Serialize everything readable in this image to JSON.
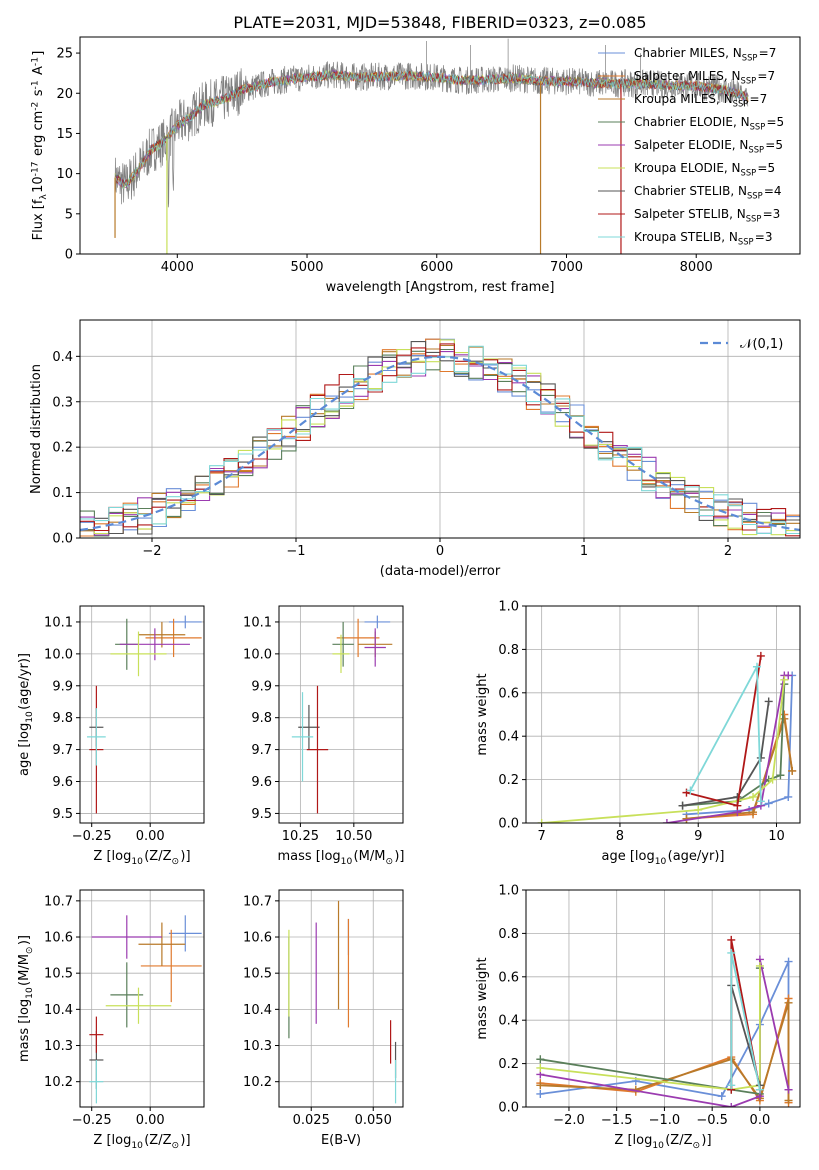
{
  "figure": {
    "title": "PLATE=2031, MJD=53848, FIBERID=0323, z=0.085"
  },
  "models": [
    {
      "name": "Chabrier MILES, N$_{SSP}$=7",
      "color": "#6a8fd8"
    },
    {
      "name": "Salpeter MILES, N$_{SSP}$=7",
      "color": "#e07a2e"
    },
    {
      "name": "Kroupa MILES, N$_{SSP}$=7",
      "color": "#b87a2a"
    },
    {
      "name": "Chabrier ELODIE, N$_{SSP}$=5",
      "color": "#5a7f5a"
    },
    {
      "name": "Salpeter ELODIE, N$_{SSP}$=5",
      "color": "#9b3bb0"
    },
    {
      "name": "Kroupa ELODIE, N$_{SSP}$=5",
      "color": "#c8e05a"
    },
    {
      "name": "Chabrier STELIB, N$_{SSP}$=4",
      "color": "#555555"
    },
    {
      "name": "Salpeter STELIB, N$_{SSP}$=3",
      "color": "#b01818"
    },
    {
      "name": "Kroupa STELIB, N$_{SSP}$=3",
      "color": "#7fd8d8"
    }
  ],
  "chart_data": [
    {
      "id": "spectrum",
      "type": "line",
      "xlabel": "wavelength [Angstrom, rest frame]",
      "ylabel": "Flux [f$_\\lambda$10$^{-17}$ erg cm$^{-2}$ s$^{-1}$ A$^{-1}$]",
      "xlim": [
        3250,
        8800
      ],
      "ylim": [
        0,
        27
      ],
      "xticks": [
        "4000",
        "5000",
        "6000",
        "7000",
        "8000"
      ],
      "yticks": [
        "0",
        "5",
        "10",
        "15",
        "20",
        "25"
      ],
      "legend_position": "right",
      "continuum": {
        "x": [
          3520,
          3600,
          3700,
          3800,
          3900,
          4000,
          4100,
          4200,
          4300,
          4400,
          4500,
          4600,
          4700,
          4800,
          4900,
          5000,
          5200,
          5400,
          5600,
          5800,
          6000,
          6200,
          6400,
          6600,
          6800,
          7000,
          7200,
          7400,
          7600,
          7800,
          8000,
          8200,
          8400
        ],
        "y": [
          9.5,
          8.5,
          10.5,
          13.0,
          14.0,
          16.0,
          17.0,
          18.5,
          19.0,
          19.5,
          20.5,
          20.8,
          21.3,
          21.6,
          21.8,
          22.0,
          22.3,
          22.0,
          22.1,
          22.2,
          22.0,
          21.6,
          21.7,
          21.9,
          21.5,
          21.5,
          21.3,
          21.2,
          21.2,
          21.0,
          20.9,
          20.5,
          19.5
        ]
      },
      "gaps": [
        {
          "x": 3520,
          "y": 2.0,
          "color": "#b87a2a"
        },
        {
          "x": 3920,
          "y": 0.0,
          "color": "#c8e05a"
        },
        {
          "x": 6800,
          "y": 0.0,
          "color": "#b87a2a"
        },
        {
          "x": 7420,
          "y": 0.0,
          "color": "#b01818"
        }
      ]
    },
    {
      "id": "residuals",
      "type": "histogram",
      "xlabel": "(data-model)/error",
      "ylabel": "Normed distribution",
      "xlim": [
        -2.5,
        2.5
      ],
      "ylim": [
        0,
        0.48
      ],
      "xticks": [
        "−2",
        "−1",
        "0",
        "1",
        "2"
      ],
      "yticks": [
        "0.0",
        "0.1",
        "0.2",
        "0.3",
        "0.4"
      ],
      "reference_label": "$\\mathcal{N}(0,1)$",
      "legend_position": "top-right",
      "bin_width": 0.1,
      "bin_start": -2.5
    },
    {
      "id": "age-vs-Z",
      "type": "errorbar",
      "xlabel": "Z [log$_{10}$(Z/Z$_\\odot$)]",
      "ylabel": "age  [log$_{10}$(age/yr)]",
      "xlim": [
        -0.3,
        0.23
      ],
      "ylim": [
        9.47,
        10.15
      ],
      "xticks": [
        "−0.25",
        "0.00"
      ],
      "yticks": [
        "9.5",
        "9.6",
        "9.7",
        "9.8",
        "9.9",
        "10.0",
        "10.1"
      ],
      "points": [
        {
          "m": 0,
          "x": 0.15,
          "y": 10.1,
          "xe": 0.07,
          "ye": 0.02
        },
        {
          "m": 1,
          "x": 0.1,
          "y": 10.05,
          "xe": 0.12,
          "ye": 0.06
        },
        {
          "m": 2,
          "x": 0.05,
          "y": 10.06,
          "xe": 0.1,
          "ye": 0.04
        },
        {
          "m": 3,
          "x": -0.1,
          "y": 10.03,
          "xe": 0.05,
          "ye": 0.08
        },
        {
          "m": 4,
          "x": 0.02,
          "y": 10.03,
          "xe": 0.15,
          "ye": 0.05
        },
        {
          "m": 5,
          "x": -0.05,
          "y": 10.0,
          "xe": 0.12,
          "ye": 0.07
        },
        {
          "m": 6,
          "x": -0.23,
          "y": 9.77,
          "xe": 0.03,
          "ye": 0.06
        },
        {
          "m": 7,
          "x": -0.23,
          "y": 9.7,
          "xe": 0.03,
          "ye": 0.2
        },
        {
          "m": 8,
          "x": -0.23,
          "y": 9.74,
          "xe": 0.04,
          "ye": 0.09
        }
      ]
    },
    {
      "id": "age-vs-mass",
      "type": "errorbar",
      "xlabel": "mass [log$_{10}$(M/M$_\\odot$)]",
      "ylabel": "",
      "xlim": [
        10.15,
        10.73
      ],
      "ylim": [
        9.47,
        10.15
      ],
      "xticks": [
        "10.25",
        "10.50"
      ],
      "yticks": [
        "9.5",
        "9.6",
        "9.7",
        "9.8",
        "9.9",
        "10.0",
        "10.1"
      ],
      "points": [
        {
          "m": 0,
          "x": 10.61,
          "y": 10.1,
          "xe": 0.06,
          "ye": 0.02
        },
        {
          "m": 1,
          "x": 10.52,
          "y": 10.05,
          "xe": 0.1,
          "ye": 0.06
        },
        {
          "m": 2,
          "x": 10.6,
          "y": 10.03,
          "xe": 0.08,
          "ye": 0.04
        },
        {
          "m": 3,
          "x": 10.45,
          "y": 10.03,
          "xe": 0.05,
          "ye": 0.07
        },
        {
          "m": 4,
          "x": 10.6,
          "y": 10.02,
          "xe": 0.05,
          "ye": 0.06
        },
        {
          "m": 5,
          "x": 10.44,
          "y": 10.0,
          "xe": 0.04,
          "ye": 0.06
        },
        {
          "m": 6,
          "x": 10.29,
          "y": 9.77,
          "xe": 0.05,
          "ye": 0.07
        },
        {
          "m": 7,
          "x": 10.33,
          "y": 9.7,
          "xe": 0.05,
          "ye": 0.2
        },
        {
          "m": 8,
          "x": 10.26,
          "y": 9.74,
          "xe": 0.05,
          "ye": 0.14
        }
      ]
    },
    {
      "id": "weight-vs-age",
      "type": "line",
      "xlabel": "age  [log$_{10}$(age/yr)]",
      "ylabel": "mass weight",
      "xlim": [
        6.8,
        10.3
      ],
      "ylim": [
        0,
        1.0
      ],
      "xticks": [
        "7",
        "8",
        "9",
        "10"
      ],
      "yticks": [
        "0.0",
        "0.2",
        "0.4",
        "0.6",
        "0.8",
        "1.0"
      ],
      "series": [
        {
          "m": 0,
          "x": [
            8.85,
            9.65,
            9.9,
            10.15,
            10.2
          ],
          "y": [
            0.04,
            0.06,
            0.09,
            0.12,
            0.68
          ]
        },
        {
          "m": 1,
          "x": [
            8.85,
            9.7,
            10.1,
            10.2
          ],
          "y": [
            0.02,
            0.04,
            0.5,
            0.24
          ]
        },
        {
          "m": 2,
          "x": [
            8.85,
            9.7,
            10.1,
            10.2
          ],
          "y": [
            0.02,
            0.05,
            0.48,
            0.24
          ]
        },
        {
          "m": 3,
          "x": [
            8.8,
            9.5,
            9.9,
            10.05,
            10.1
          ],
          "y": [
            0.08,
            0.1,
            0.2,
            0.22,
            0.64
          ]
        },
        {
          "m": 4,
          "x": [
            8.6,
            9.5,
            9.8,
            10.1,
            10.15
          ],
          "y": [
            0.0,
            0.05,
            0.08,
            0.68,
            0.68
          ]
        },
        {
          "m": 5,
          "x": [
            7.0,
            9.0,
            9.7,
            9.95,
            10.1
          ],
          "y": [
            0.0,
            0.06,
            0.12,
            0.2,
            0.66
          ]
        },
        {
          "m": 6,
          "x": [
            8.8,
            9.5,
            9.8,
            9.9
          ],
          "y": [
            0.08,
            0.12,
            0.3,
            0.56
          ]
        },
        {
          "m": 7,
          "x": [
            8.85,
            9.5,
            9.8
          ],
          "y": [
            0.14,
            0.08,
            0.77
          ]
        },
        {
          "m": 8,
          "x": [
            8.9,
            9.75,
            9.8
          ],
          "y": [
            0.15,
            0.72,
            0.1
          ]
        }
      ]
    },
    {
      "id": "mass-vs-Z",
      "type": "errorbar",
      "xlabel": "Z [log$_{10}$(Z/Z$_\\odot$)]",
      "ylabel": "mass [log$_{10}$(M/M$_\\odot$)]",
      "xlim": [
        -0.3,
        0.23
      ],
      "ylim": [
        10.13,
        10.73
      ],
      "xticks": [
        "−0.25",
        "0.00"
      ],
      "yticks": [
        "10.2",
        "10.3",
        "10.4",
        "10.5",
        "10.6",
        "10.7"
      ],
      "points": [
        {
          "m": 0,
          "x": 0.15,
          "y": 10.61,
          "xe": 0.07,
          "ye": 0.05
        },
        {
          "m": 1,
          "x": 0.09,
          "y": 10.52,
          "xe": 0.13,
          "ye": 0.1
        },
        {
          "m": 2,
          "x": 0.05,
          "y": 10.58,
          "xe": 0.1,
          "ye": 0.06
        },
        {
          "m": 3,
          "x": -0.1,
          "y": 10.44,
          "xe": 0.07,
          "ye": 0.09
        },
        {
          "m": 4,
          "x": -0.1,
          "y": 10.6,
          "xe": 0.15,
          "ye": 0.06
        },
        {
          "m": 5,
          "x": -0.05,
          "y": 10.41,
          "xe": 0.14,
          "ye": 0.05
        },
        {
          "m": 6,
          "x": -0.23,
          "y": 10.26,
          "xe": 0.03,
          "ye": 0.08
        },
        {
          "m": 7,
          "x": -0.23,
          "y": 10.33,
          "xe": 0.03,
          "ye": 0.05
        },
        {
          "m": 8,
          "x": -0.23,
          "y": 10.2,
          "xe": 0.03,
          "ye": 0.06
        }
      ]
    },
    {
      "id": "mass-vs-ebv",
      "type": "errorbar",
      "xlabel": "E(B-V)",
      "ylabel": "",
      "xlim": [
        0.012,
        0.062
      ],
      "ylim": [
        10.13,
        10.73
      ],
      "xticks": [
        "0.025",
        "0.050"
      ],
      "yticks": [
        "10.2",
        "10.3",
        "10.4",
        "10.5",
        "10.6",
        "10.7"
      ],
      "points": [
        {
          "m": 0,
          "x": 0.04,
          "y": 10.6,
          "xe": 0,
          "ye": 0.05
        },
        {
          "m": 1,
          "x": 0.04,
          "y": 10.5,
          "xe": 0,
          "ye": 0.15
        },
        {
          "m": 2,
          "x": 0.036,
          "y": 10.55,
          "xe": 0,
          "ye": 0.15
        },
        {
          "m": 3,
          "x": 0.016,
          "y": 10.46,
          "xe": 0,
          "ye": 0.14
        },
        {
          "m": 4,
          "x": 0.027,
          "y": 10.5,
          "xe": 0,
          "ye": 0.14
        },
        {
          "m": 5,
          "x": 0.016,
          "y": 10.5,
          "xe": 0,
          "ye": 0.12
        },
        {
          "m": 6,
          "x": 0.059,
          "y": 10.26,
          "xe": 0,
          "ye": 0.05
        },
        {
          "m": 7,
          "x": 0.057,
          "y": 10.31,
          "xe": 0,
          "ye": 0.06
        },
        {
          "m": 8,
          "x": 0.059,
          "y": 10.2,
          "xe": 0,
          "ye": 0.06
        }
      ]
    },
    {
      "id": "weight-vs-Z",
      "type": "line",
      "xlabel": "Z [log$_{10}$(Z/Z$_\\odot$)]",
      "ylabel": "mass weight",
      "xlim": [
        -2.45,
        0.42
      ],
      "ylim": [
        0,
        1.0
      ],
      "xticks": [
        "−2.0",
        "−1.5",
        "−1.0",
        "−0.5",
        "0.0"
      ],
      "yticks": [
        "0.0",
        "0.2",
        "0.4",
        "0.6",
        "0.8",
        "1.0"
      ],
      "series": [
        {
          "m": 0,
          "x": [
            -2.3,
            -1.3,
            -0.4,
            0.0,
            0.3,
            0.3
          ],
          "y": [
            0.06,
            0.12,
            0.05,
            0.38,
            0.67,
            0.08
          ]
        },
        {
          "m": 1,
          "x": [
            -2.3,
            -1.3,
            -0.3,
            0.0,
            0.3,
            0.3
          ],
          "y": [
            0.11,
            0.07,
            0.23,
            0.03,
            0.5,
            0.02
          ]
        },
        {
          "m": 2,
          "x": [
            -2.3,
            -1.3,
            -0.3,
            0.0,
            0.3,
            0.3
          ],
          "y": [
            0.1,
            0.08,
            0.22,
            0.04,
            0.48,
            0.03
          ]
        },
        {
          "m": 3,
          "x": [
            -2.3,
            -0.3,
            0.0,
            0.0
          ],
          "y": [
            0.22,
            0.08,
            0.06,
            0.64
          ]
        },
        {
          "m": 4,
          "x": [
            -2.3,
            -0.3,
            0.0,
            0.0,
            0.3
          ],
          "y": [
            0.15,
            0.0,
            0.05,
            0.68,
            0.08
          ]
        },
        {
          "m": 5,
          "x": [
            -2.3,
            -0.3,
            0.0,
            0.0
          ],
          "y": [
            0.18,
            0.08,
            0.1,
            0.65
          ]
        },
        {
          "m": 6,
          "x": [
            -0.3,
            -0.3,
            0.0
          ],
          "y": [
            0.08,
            0.56,
            0.1
          ]
        },
        {
          "m": 7,
          "x": [
            -0.3,
            -0.3,
            0.0
          ],
          "y": [
            0.08,
            0.77,
            0.08
          ]
        },
        {
          "m": 8,
          "x": [
            -0.3,
            -0.3,
            0.0
          ],
          "y": [
            0.1,
            0.71,
            0.08
          ]
        }
      ]
    }
  ]
}
